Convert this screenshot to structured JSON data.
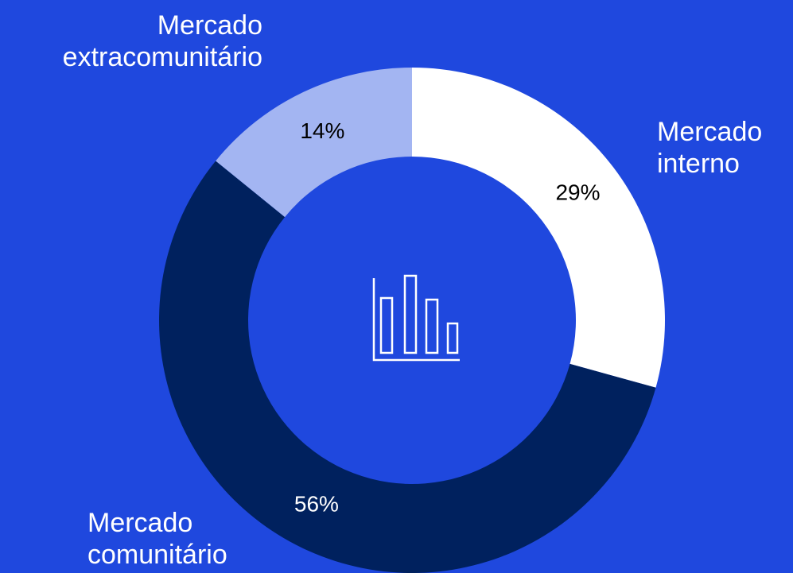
{
  "chart_data": {
    "type": "donut",
    "categories": [
      "Mercado interno",
      "Mercado comunitário",
      "Mercado extracomunitário"
    ],
    "values": [
      29,
      56,
      14
    ],
    "value_labels": [
      "29%",
      "56%",
      "14%"
    ],
    "colors": [
      "#ffffff",
      "#00215e",
      "#a3b5f2"
    ],
    "background": "#1f48de"
  }
}
